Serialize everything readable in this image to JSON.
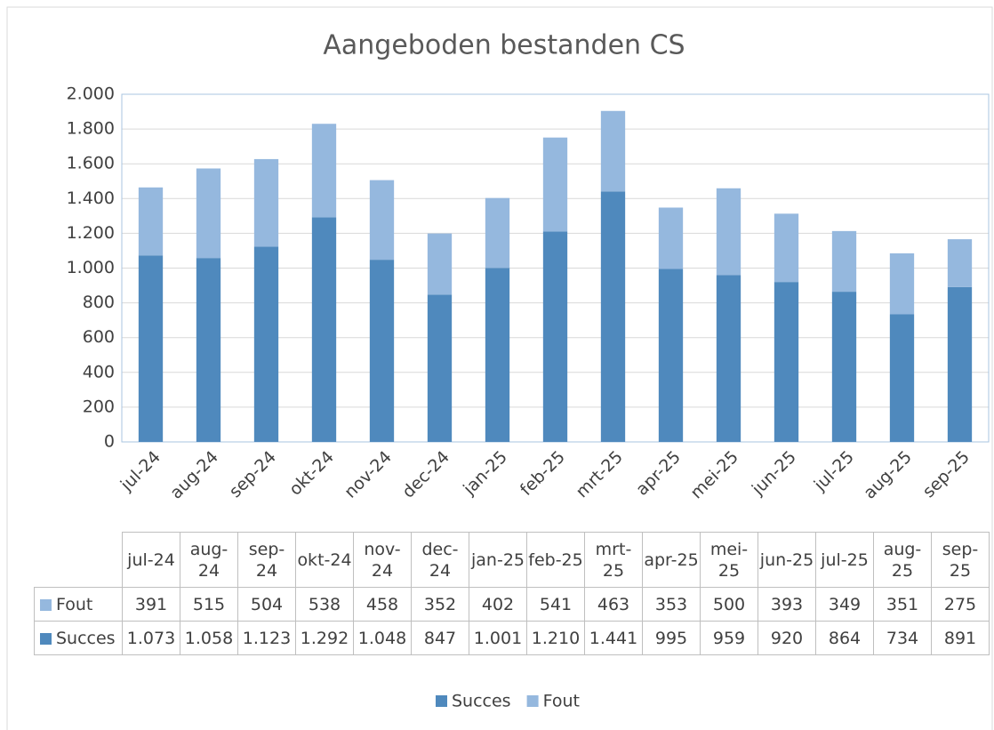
{
  "chart_data": {
    "type": "bar",
    "stacked": true,
    "title": "Aangeboden bestanden CS",
    "categories": [
      "jul-24",
      "aug-24",
      "sep-24",
      "okt-24",
      "nov-24",
      "dec-24",
      "jan-25",
      "feb-25",
      "mrt-25",
      "apr-25",
      "mei-25",
      "jun-25",
      "jul-25",
      "aug-25",
      "sep-25"
    ],
    "series": [
      {
        "name": "Succes",
        "color": "#4f89bd",
        "values": [
          1073,
          1058,
          1123,
          1292,
          1048,
          847,
          1001,
          1210,
          1441,
          995,
          959,
          920,
          864,
          734,
          891
        ],
        "value_labels": [
          "1.073",
          "1.058",
          "1.123",
          "1.292",
          "1.048",
          "847",
          "1.001",
          "1.210",
          "1.441",
          "995",
          "959",
          "920",
          "864",
          "734",
          "891"
        ]
      },
      {
        "name": "Fout",
        "color": "#95b8de",
        "values": [
          391,
          515,
          504,
          538,
          458,
          352,
          402,
          541,
          463,
          353,
          500,
          393,
          349,
          351,
          275
        ]
      }
    ],
    "ylim": [
      0,
      2000
    ],
    "yticks": [
      0,
      200,
      400,
      600,
      800,
      {
        "value": 1000,
        "label": "1.000"
      },
      {
        "value": 1200,
        "label": "1.200"
      },
      {
        "value": 1400,
        "label": "1.400"
      },
      {
        "value": 1600,
        "label": "1.600"
      },
      {
        "value": 1800,
        "label": "1.800"
      },
      {
        "value": 2000,
        "label": "2.000"
      }
    ],
    "grid": true,
    "legend": "bottom",
    "data_table": true
  }
}
